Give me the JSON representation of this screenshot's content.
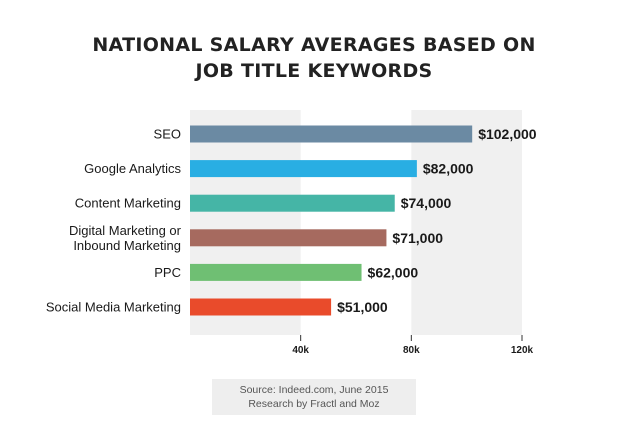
{
  "chart_data": {
    "type": "bar",
    "orientation": "horizontal",
    "title_lines": [
      "NATIONAL SALARY AVERAGES BASED ON",
      "JOB TITLE KEYWORDS"
    ],
    "categories": [
      [
        "SEO"
      ],
      [
        "Google Analytics"
      ],
      [
        "Content Marketing"
      ],
      [
        "Digital Marketing or",
        "Inbound Marketing"
      ],
      [
        "PPC"
      ],
      [
        "Social Media Marketing"
      ]
    ],
    "values": [
      102000,
      82000,
      74000,
      71000,
      62000,
      51000
    ],
    "value_labels": [
      "$102,000",
      "$82,000",
      "$74,000",
      "$71,000",
      "$62,000",
      "$51,000"
    ],
    "colors": [
      "#6b8aa3",
      "#29aee3",
      "#45b5a6",
      "#a66a5f",
      "#6fbf73",
      "#e94b2b"
    ],
    "xlim": [
      0,
      120000
    ],
    "ticks": [
      40000,
      80000,
      120000
    ],
    "tick_labels": [
      "40k",
      "80k",
      "120k"
    ],
    "grid": "alternating bands",
    "band_color": "#f0f0f0"
  },
  "source": {
    "line1": "Source: Indeed.com, June 2015",
    "line2": "Research by Fractl and Moz"
  }
}
